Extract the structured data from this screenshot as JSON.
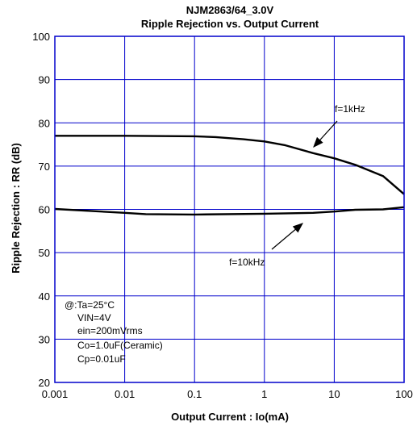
{
  "chart_data": {
    "type": "line",
    "title": "NJM2863/64_3.0V",
    "subtitle": "Ripple Rejection vs. Output Current",
    "xlabel": "Output Current : Io(mA)",
    "ylabel": "Ripple Rejection : RR (dB)",
    "x_scale": "log",
    "xlim": [
      0.001,
      100
    ],
    "ylim": [
      20,
      100
    ],
    "x_ticks": [
      "0.001",
      "0.01",
      "0.1",
      "1",
      "10",
      "100"
    ],
    "y_ticks": [
      "20",
      "30",
      "40",
      "50",
      "60",
      "70",
      "80",
      "90",
      "100"
    ],
    "grid": true,
    "series": [
      {
        "name": "f=1kHz",
        "x": [
          0.001,
          0.01,
          0.1,
          0.2,
          0.5,
          1,
          2,
          5,
          10,
          20,
          50,
          100
        ],
        "y": [
          77.0,
          77.0,
          76.9,
          76.7,
          76.2,
          75.7,
          74.8,
          73.0,
          71.8,
          70.3,
          67.7,
          63.5
        ]
      },
      {
        "name": "f=10kHz",
        "x": [
          0.001,
          0.01,
          0.02,
          0.1,
          1,
          5,
          10,
          20,
          50,
          100
        ],
        "y": [
          60.1,
          59.2,
          58.9,
          58.8,
          59.0,
          59.2,
          59.5,
          59.9,
          60.0,
          60.5
        ]
      }
    ],
    "annotations": [
      {
        "text": "f=1kHz",
        "target": "f=1kHz"
      },
      {
        "text": "f=10kHz",
        "target": "f=10kHz"
      }
    ],
    "conditions": [
      "@:Ta=25°C",
      "VIN=4V",
      "ein=200mVrms",
      "Co=1.0uF(Ceramic)",
      "Cp=0.01uF"
    ],
    "colors": {
      "frame": "#0000cc",
      "grid": "#0000cc",
      "line": "#000000"
    }
  }
}
